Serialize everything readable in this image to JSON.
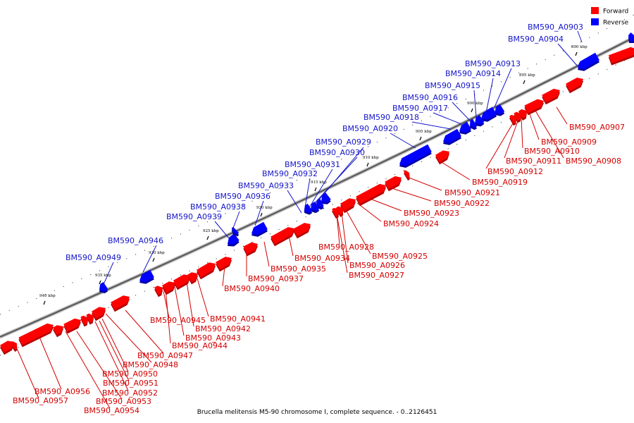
{
  "caption": "Brucella melitensis M5-90 chromosome I, complete sequence. - 0..2126451",
  "legend": [
    {
      "label": "Forward",
      "color": "#ff0000"
    },
    {
      "label": "Reverse",
      "color": "#0000ff"
    }
  ],
  "ticks": [
    "890 kbp",
    "895 kbp",
    "900 kbp",
    "905 kbp",
    "910 kbp",
    "915 kbp",
    "920 kbp",
    "925 kbp",
    "930 kbp",
    "935 kbp",
    "940 kbp"
  ],
  "genes": [
    {
      "id": "BM590_A0903",
      "strand": "reverse"
    },
    {
      "id": "BM590_A0904",
      "strand": "reverse"
    },
    {
      "id": "BM590_A0907",
      "strand": "forward"
    },
    {
      "id": "BM590_A0908",
      "strand": "forward"
    },
    {
      "id": "BM590_A0909",
      "strand": "forward"
    },
    {
      "id": "BM590_A0910",
      "strand": "forward"
    },
    {
      "id": "BM590_A0911",
      "strand": "forward"
    },
    {
      "id": "BM590_A0912",
      "strand": "forward"
    },
    {
      "id": "BM590_A0913",
      "strand": "reverse"
    },
    {
      "id": "BM590_A0914",
      "strand": "reverse"
    },
    {
      "id": "BM590_A0915",
      "strand": "reverse"
    },
    {
      "id": "BM590_A0916",
      "strand": "reverse"
    },
    {
      "id": "BM590_A0917",
      "strand": "reverse"
    },
    {
      "id": "BM590_A0918",
      "strand": "reverse"
    },
    {
      "id": "BM590_A0919",
      "strand": "forward"
    },
    {
      "id": "BM590_A0920",
      "strand": "reverse"
    },
    {
      "id": "BM590_A0921",
      "strand": "forward"
    },
    {
      "id": "BM590_A0922",
      "strand": "forward"
    },
    {
      "id": "BM590_A0923",
      "strand": "forward"
    },
    {
      "id": "BM590_A0924",
      "strand": "forward"
    },
    {
      "id": "BM590_A0925",
      "strand": "forward"
    },
    {
      "id": "BM590_A0926",
      "strand": "forward"
    },
    {
      "id": "BM590_A0927",
      "strand": "forward"
    },
    {
      "id": "BM590_A0928",
      "strand": "forward"
    },
    {
      "id": "BM590_A0929",
      "strand": "reverse"
    },
    {
      "id": "BM590_A0930",
      "strand": "reverse"
    },
    {
      "id": "BM590_A0931",
      "strand": "reverse"
    },
    {
      "id": "BM590_A0932",
      "strand": "reverse"
    },
    {
      "id": "BM590_A0933",
      "strand": "reverse"
    },
    {
      "id": "BM590_A0934",
      "strand": "forward"
    },
    {
      "id": "BM590_A0935",
      "strand": "forward"
    },
    {
      "id": "BM590_A0936",
      "strand": "reverse"
    },
    {
      "id": "BM590_A0937",
      "strand": "forward"
    },
    {
      "id": "BM590_A0938",
      "strand": "reverse"
    },
    {
      "id": "BM590_A0939",
      "strand": "reverse"
    },
    {
      "id": "BM590_A0940",
      "strand": "forward"
    },
    {
      "id": "BM590_A0941",
      "strand": "forward"
    },
    {
      "id": "BM590_A0942",
      "strand": "forward"
    },
    {
      "id": "BM590_A0943",
      "strand": "forward"
    },
    {
      "id": "BM590_A0944",
      "strand": "forward"
    },
    {
      "id": "BM590_A0945",
      "strand": "forward"
    },
    {
      "id": "BM590_A0946",
      "strand": "reverse"
    },
    {
      "id": "BM590_A0947",
      "strand": "forward"
    },
    {
      "id": "BM590_A0948",
      "strand": "forward"
    },
    {
      "id": "BM590_A0949",
      "strand": "reverse"
    },
    {
      "id": "BM590_A0950",
      "strand": "forward"
    },
    {
      "id": "BM590_A0951",
      "strand": "forward"
    },
    {
      "id": "BM590_A0952",
      "strand": "forward"
    },
    {
      "id": "BM590_A0953",
      "strand": "forward"
    },
    {
      "id": "BM590_A0954",
      "strand": "forward"
    },
    {
      "id": "BM590_A0956",
      "strand": "forward"
    },
    {
      "id": "BM590_A0957",
      "strand": "forward"
    }
  ]
}
